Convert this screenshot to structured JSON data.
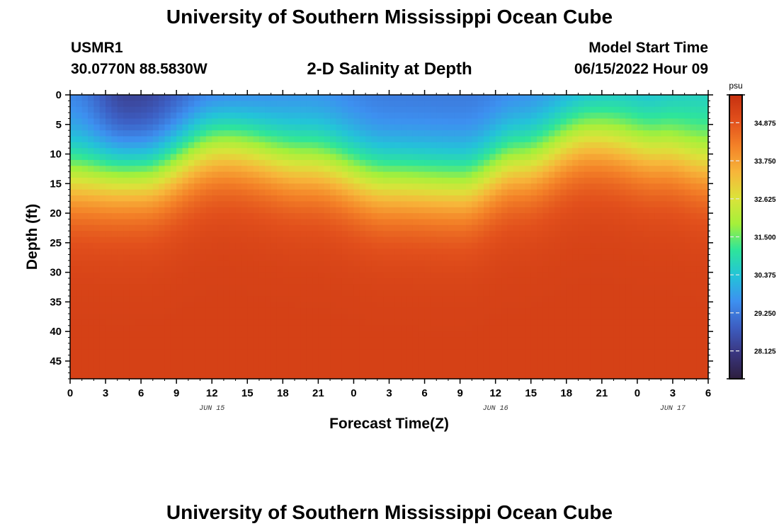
{
  "header": {
    "title": "University of Southern Mississippi Ocean Cube",
    "station_id": "USMR1",
    "coordinates": "30.0770N  88.5830W",
    "chart_title": "2-D Salinity at Depth",
    "model_start_label": "Model Start Time",
    "model_start_value": "06/15/2022 Hour 09"
  },
  "footer": {
    "title": "University of Southern Mississippi Ocean Cube"
  },
  "colors": {
    "colormap": [
      "#2d1e3e",
      "#3a3680",
      "#3d5ec2",
      "#3d90f0",
      "#23c4d8",
      "#2ee59a",
      "#a5f03a",
      "#dbe33a",
      "#f7b63a",
      "#f48328",
      "#e2501c",
      "#c63010"
    ]
  },
  "chart_data": {
    "type": "heatmap",
    "xlabel": "Forecast Time(Z)",
    "ylabel": "Depth (ft)",
    "x_tick_labels": [
      "0",
      "3",
      "6",
      "9",
      "12",
      "15",
      "18",
      "21",
      "0",
      "3",
      "6",
      "9",
      "12",
      "15",
      "18",
      "21",
      "0",
      "3",
      "6"
    ],
    "date_labels": [
      {
        "label": "JUN 15",
        "hour": 12
      },
      {
        "label": "JUN 16",
        "hour": 36
      },
      {
        "label": "JUN 17",
        "hour": 51
      }
    ],
    "xlim": [
      0,
      54
    ],
    "y_ticks": [
      0,
      5,
      10,
      15,
      20,
      25,
      30,
      35,
      40,
      45
    ],
    "ylim": [
      0,
      48
    ],
    "colorbar": {
      "unit": "psu",
      "range": [
        27.3,
        35.7
      ],
      "tick_values": [
        34.875,
        33.75,
        32.625,
        31.5,
        30.375,
        29.25,
        28.125
      ],
      "tick_labels": [
        "34.875",
        "33.750",
        "32.625",
        "31.500",
        "30.375",
        "29.250",
        "28.125"
      ]
    },
    "halocline_depth_ft": {
      "hours": [
        0,
        6,
        13,
        20,
        27,
        33,
        38,
        44,
        50,
        54
      ],
      "depth": [
        13.5,
        13,
        8,
        11,
        14.5,
        15,
        11,
        6.5,
        9,
        11
      ]
    },
    "surface_salinity_psu": {
      "hours": [
        0,
        5,
        12,
        20,
        28,
        34,
        42,
        48,
        54
      ],
      "value": [
        29.2,
        28.0,
        28.7,
        29.3,
        29.1,
        29.1,
        29.3,
        29.8,
        30.3
      ]
    },
    "bottom_salinity_psu": 35.3,
    "gradient_scale_ft": 11
  }
}
